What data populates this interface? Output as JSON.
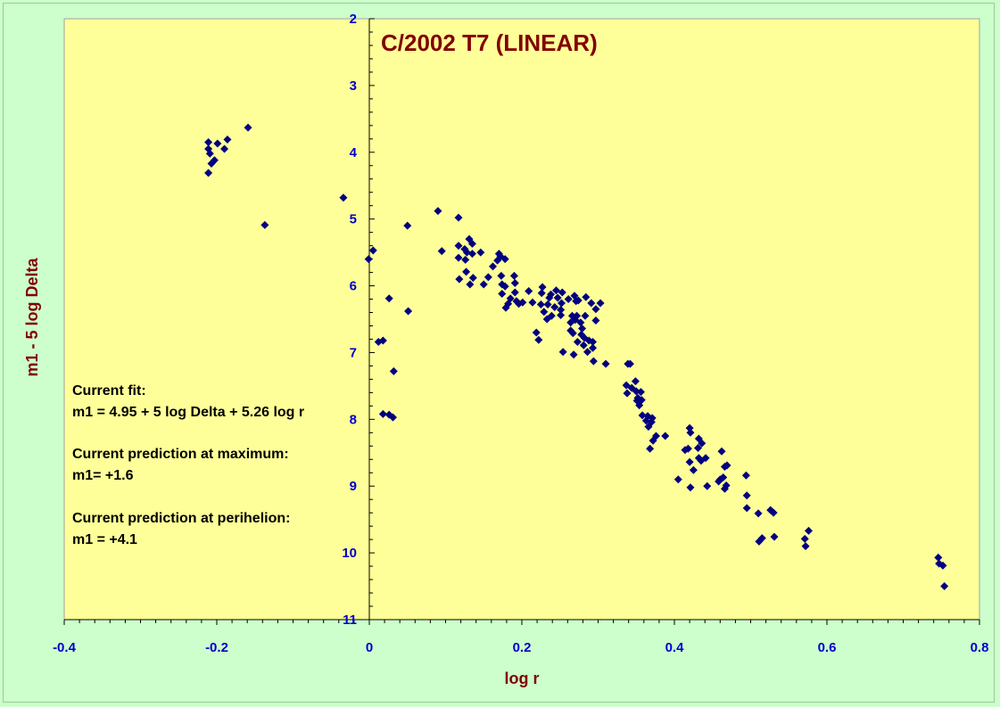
{
  "chart_data": {
    "type": "scatter",
    "title": "C/2002 T7 (LINEAR)",
    "xlabel": "log r",
    "ylabel": "m1 - 5 log Delta",
    "xlim": [
      -0.4,
      0.8
    ],
    "ylim": [
      2,
      11
    ],
    "y_inverted": true,
    "x_ticks": [
      "-0.4",
      "-0.2",
      "0",
      "0.2",
      "0.4",
      "0.6",
      "0.8"
    ],
    "y_ticks": [
      "2",
      "3",
      "4",
      "5",
      "6",
      "7",
      "8",
      "9",
      "10",
      "11"
    ],
    "grid": false,
    "background_color": "#ffff99",
    "page_background": "#ccffcc",
    "marker_color": "#000080",
    "marker": "diamond",
    "points": [
      [
        -0.211,
        3.85
      ],
      [
        -0.211,
        3.95
      ],
      [
        -0.209,
        4.02
      ],
      [
        -0.207,
        4.17
      ],
      [
        -0.211,
        4.31
      ],
      [
        -0.203,
        4.12
      ],
      [
        -0.199,
        3.87
      ],
      [
        -0.19,
        3.95
      ],
      [
        -0.186,
        3.81
      ],
      [
        -0.159,
        3.63
      ],
      [
        -0.137,
        5.09
      ],
      [
        -0.034,
        4.68
      ],
      [
        -0.001,
        5.6
      ],
      [
        0.005,
        5.47
      ],
      [
        0.012,
        6.84
      ],
      [
        0.018,
        6.82
      ],
      [
        0.018,
        7.92
      ],
      [
        0.026,
        7.93
      ],
      [
        0.026,
        6.19
      ],
      [
        0.031,
        7.97
      ],
      [
        0.032,
        7.28
      ],
      [
        0.05,
        5.1
      ],
      [
        0.051,
        6.38
      ],
      [
        0.09,
        4.88
      ],
      [
        0.095,
        5.48
      ],
      [
        0.117,
        4.98
      ],
      [
        0.117,
        5.4
      ],
      [
        0.117,
        5.58
      ],
      [
        0.118,
        5.9
      ],
      [
        0.125,
        5.45
      ],
      [
        0.126,
        5.61
      ],
      [
        0.127,
        5.79
      ],
      [
        0.128,
        5.5
      ],
      [
        0.131,
        5.3
      ],
      [
        0.132,
        5.98
      ],
      [
        0.135,
        5.37
      ],
      [
        0.135,
        5.52
      ],
      [
        0.136,
        5.88
      ],
      [
        0.146,
        5.5
      ],
      [
        0.15,
        5.98
      ],
      [
        0.156,
        5.87
      ],
      [
        0.162,
        5.71
      ],
      [
        0.168,
        5.62
      ],
      [
        0.17,
        5.52
      ],
      [
        0.172,
        5.56
      ],
      [
        0.173,
        5.85
      ],
      [
        0.174,
        5.98
      ],
      [
        0.174,
        6.12
      ],
      [
        0.178,
        5.6
      ],
      [
        0.178,
        6.01
      ],
      [
        0.179,
        6.33
      ],
      [
        0.182,
        6.27
      ],
      [
        0.185,
        6.19
      ],
      [
        0.19,
        5.85
      ],
      [
        0.191,
        5.96
      ],
      [
        0.191,
        6.1
      ],
      [
        0.193,
        6.23
      ],
      [
        0.196,
        6.27
      ],
      [
        0.201,
        6.25
      ],
      [
        0.209,
        6.08
      ],
      [
        0.214,
        6.25
      ],
      [
        0.219,
        6.7
      ],
      [
        0.222,
        6.81
      ],
      [
        0.225,
        6.28
      ],
      [
        0.226,
        6.11
      ],
      [
        0.227,
        6.02
      ],
      [
        0.229,
        6.39
      ],
      [
        0.233,
        6.5
      ],
      [
        0.234,
        6.28
      ],
      [
        0.236,
        6.18
      ],
      [
        0.238,
        6.13
      ],
      [
        0.239,
        6.45
      ],
      [
        0.243,
        6.32
      ],
      [
        0.245,
        6.07
      ],
      [
        0.247,
        6.18
      ],
      [
        0.251,
        6.36
      ],
      [
        0.251,
        6.44
      ],
      [
        0.252,
        6.26
      ],
      [
        0.253,
        6.1
      ],
      [
        0.254,
        6.99
      ],
      [
        0.261,
        6.2
      ],
      [
        0.264,
        6.55
      ],
      [
        0.264,
        6.67
      ],
      [
        0.266,
        6.45
      ],
      [
        0.267,
        6.71
      ],
      [
        0.268,
        7.03
      ],
      [
        0.269,
        6.15
      ],
      [
        0.27,
        6.51
      ],
      [
        0.271,
        6.23
      ],
      [
        0.272,
        6.45
      ],
      [
        0.273,
        6.84
      ],
      [
        0.274,
        6.22
      ],
      [
        0.277,
        6.55
      ],
      [
        0.278,
        6.73
      ],
      [
        0.279,
        6.64
      ],
      [
        0.281,
        6.89
      ],
      [
        0.282,
        6.78
      ],
      [
        0.283,
        6.45
      ],
      [
        0.284,
        6.17
      ],
      [
        0.286,
        6.99
      ],
      [
        0.288,
        6.82
      ],
      [
        0.291,
        6.26
      ],
      [
        0.293,
        6.84
      ],
      [
        0.293,
        6.93
      ],
      [
        0.294,
        7.13
      ],
      [
        0.297,
        6.52
      ],
      [
        0.297,
        6.35
      ],
      [
        0.303,
        6.26
      ],
      [
        0.31,
        7.17
      ],
      [
        0.337,
        7.49
      ],
      [
        0.338,
        7.61
      ],
      [
        0.339,
        7.17
      ],
      [
        0.342,
        7.17
      ],
      [
        0.344,
        7.53
      ],
      [
        0.349,
        7.43
      ],
      [
        0.35,
        7.58
      ],
      [
        0.351,
        7.72
      ],
      [
        0.352,
        7.68
      ],
      [
        0.354,
        7.79
      ],
      [
        0.356,
        7.59
      ],
      [
        0.357,
        7.71
      ],
      [
        0.358,
        7.94
      ],
      [
        0.363,
        8.02
      ],
      [
        0.365,
        7.95
      ],
      [
        0.366,
        8.11
      ],
      [
        0.368,
        8.44
      ],
      [
        0.37,
        8.04
      ],
      [
        0.371,
        7.98
      ],
      [
        0.372,
        8.32
      ],
      [
        0.376,
        8.25
      ],
      [
        0.388,
        8.25
      ],
      [
        0.405,
        8.9
      ],
      [
        0.414,
        8.46
      ],
      [
        0.418,
        8.44
      ],
      [
        0.42,
        8.13
      ],
      [
        0.42,
        8.64
      ],
      [
        0.421,
        8.2
      ],
      [
        0.421,
        9.02
      ],
      [
        0.425,
        8.76
      ],
      [
        0.431,
        8.43
      ],
      [
        0.432,
        8.29
      ],
      [
        0.432,
        8.58
      ],
      [
        0.435,
        8.62
      ],
      [
        0.436,
        8.36
      ],
      [
        0.441,
        8.58
      ],
      [
        0.443,
        9.0
      ],
      [
        0.458,
        8.93
      ],
      [
        0.46,
        8.9
      ],
      [
        0.462,
        8.48
      ],
      [
        0.464,
        8.87
      ],
      [
        0.466,
        9.04
      ],
      [
        0.466,
        8.71
      ],
      [
        0.468,
        8.99
      ],
      [
        0.469,
        8.69
      ],
      [
        0.494,
        8.84
      ],
      [
        0.495,
        9.14
      ],
      [
        0.495,
        9.33
      ],
      [
        0.51,
        9.41
      ],
      [
        0.511,
        9.83
      ],
      [
        0.515,
        9.78
      ],
      [
        0.526,
        9.36
      ],
      [
        0.53,
        9.4
      ],
      [
        0.531,
        9.76
      ],
      [
        0.571,
        9.79
      ],
      [
        0.572,
        9.9
      ],
      [
        0.576,
        9.67
      ],
      [
        0.746,
        10.07
      ],
      [
        0.747,
        10.16
      ],
      [
        0.752,
        10.19
      ],
      [
        0.754,
        10.5
      ]
    ]
  },
  "notes": {
    "fit_label": "Current fit:",
    "fit_equation": "m1 = 4.95 + 5 log Delta + 5.26 log r",
    "max_label": "Current prediction at maximum:",
    "max_value": "m1= +1.6",
    "peri_label": "Current prediction at perihelion:",
    "peri_value": "m1 = +4.1"
  }
}
